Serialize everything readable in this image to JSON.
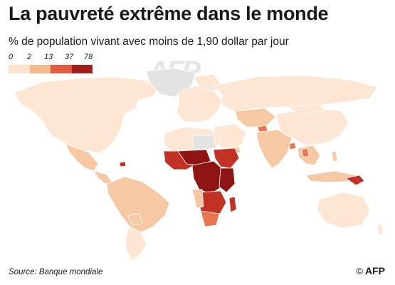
{
  "header": {
    "title": "La pauvreté extrême dans le monde",
    "subtitle": "% de population vivant avec moins de 1,90 dollar par jour"
  },
  "legend": {
    "labels": [
      "0",
      "2",
      "13",
      "37",
      "78"
    ],
    "colors": [
      "#fde3cc",
      "#f5b98f",
      "#e4593f",
      "#a31d1d"
    ]
  },
  "map_colors": {
    "land_lightest": "#fde6d3",
    "land_light": "#f7c8a4",
    "land_medium": "#e9764e",
    "land_dark": "#c23224",
    "land_darkest": "#8f1515",
    "no_data": "#e3e3e3"
  },
  "footer": {
    "source": "Source: Banque mondiale",
    "copyright": "©",
    "agency": "AFP"
  },
  "watermark": "AFP"
}
